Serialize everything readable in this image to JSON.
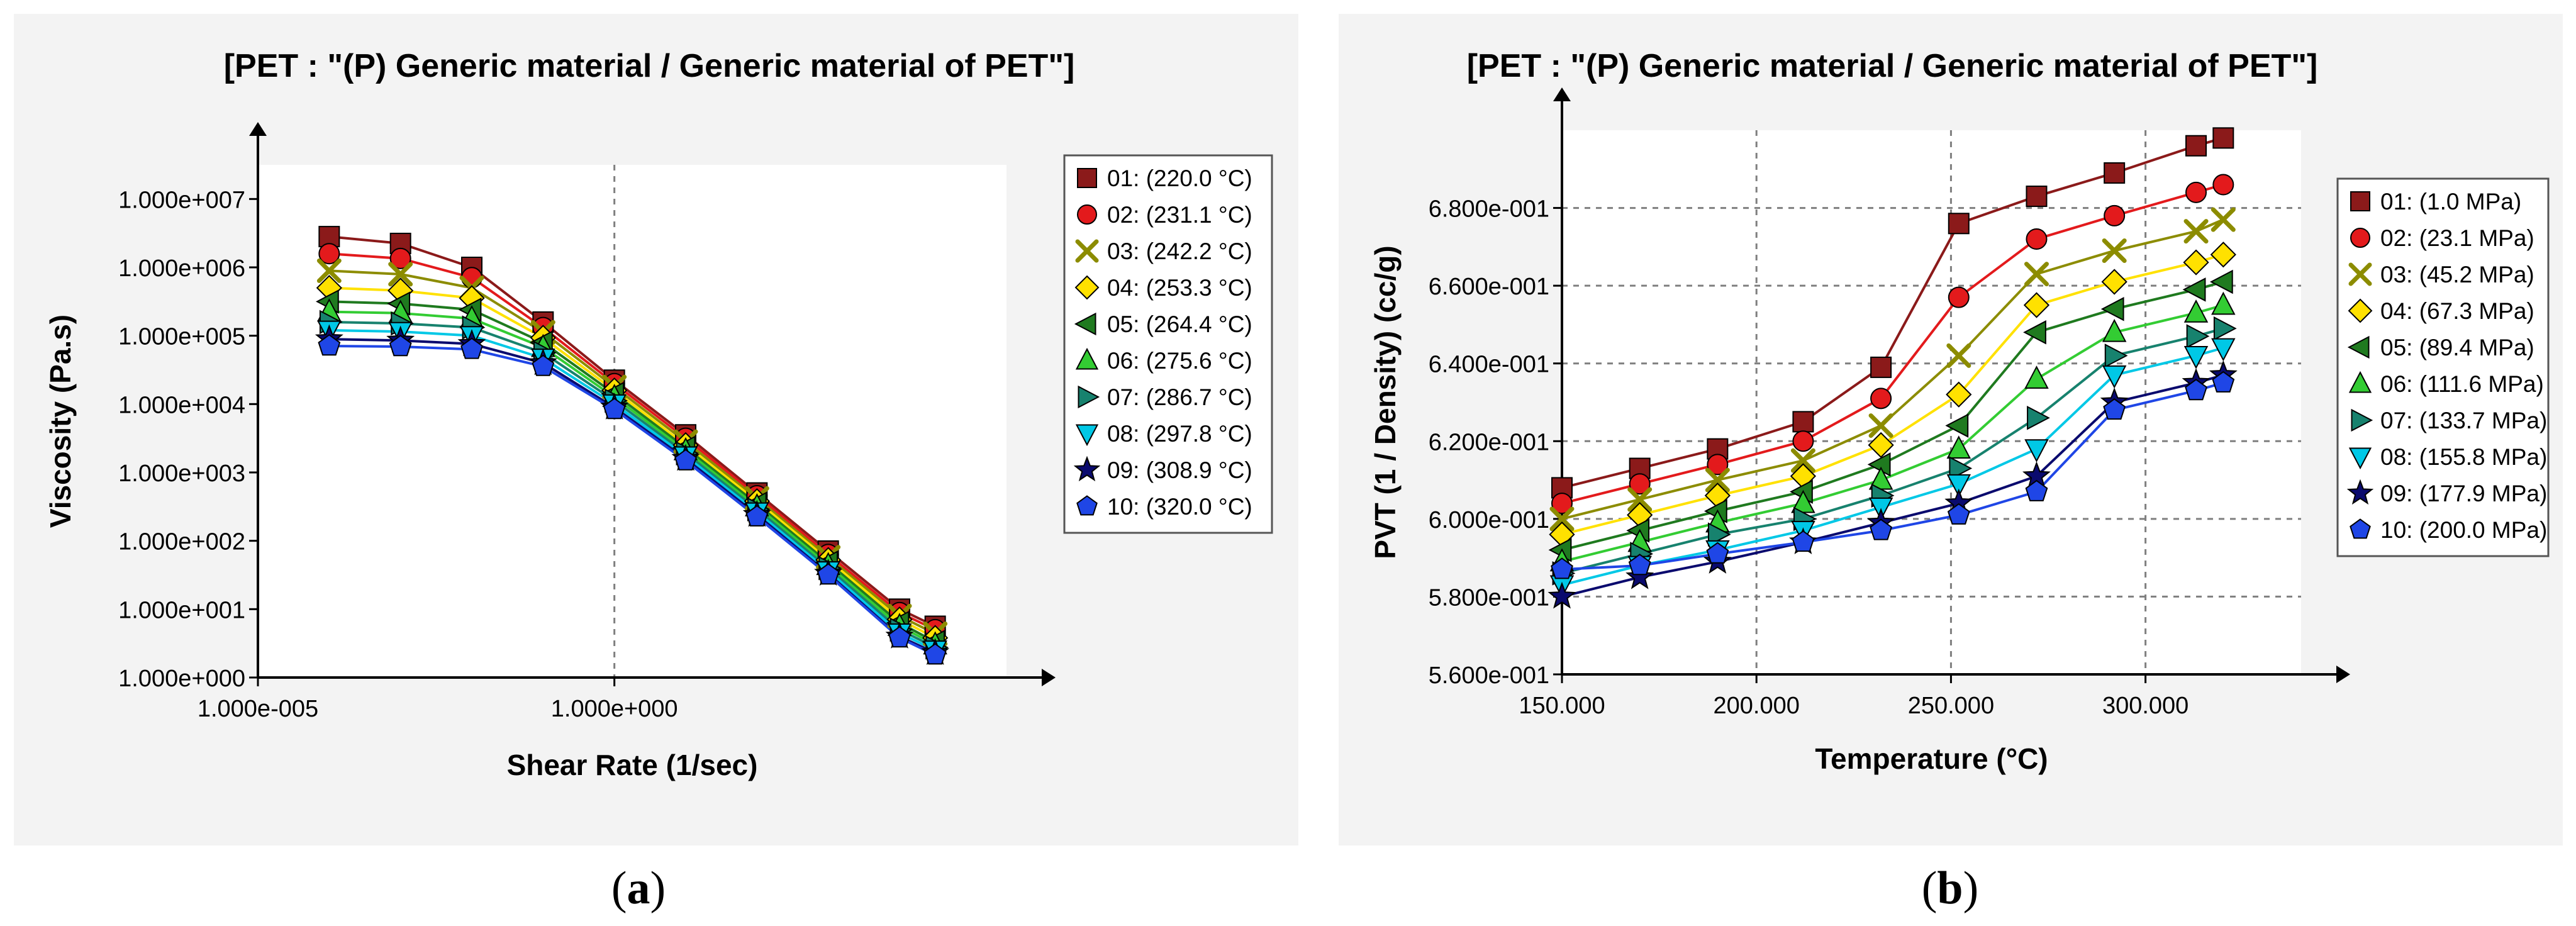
{
  "captions": {
    "a": "a",
    "b": "b"
  },
  "chart_data": [
    {
      "type": "line",
      "panel": "a",
      "title": "[PET : \"(P)  Generic material / Generic material of PET\"]",
      "xlabel": "Shear Rate (1/sec)",
      "ylabel": "Viscosity (Pa.s)",
      "xscale": "log10",
      "yscale": "log10",
      "xlim": [
        -5,
        5.5
      ],
      "ylim": [
        0,
        7.5
      ],
      "x_ticks": [
        {
          "v": -5,
          "label": "1.000e-005"
        },
        {
          "v": 0,
          "label": "1.000e+000"
        }
      ],
      "y_ticks": [
        {
          "v": 0,
          "label": "1.000e+000"
        },
        {
          "v": 1,
          "label": "1.000e+001"
        },
        {
          "v": 2,
          "label": "1.000e+002"
        },
        {
          "v": 3,
          "label": "1.000e+003"
        },
        {
          "v": 4,
          "label": "1.000e+004"
        },
        {
          "v": 5,
          "label": "1.000e+005"
        },
        {
          "v": 6,
          "label": "1.000e+006"
        },
        {
          "v": 7,
          "label": "1.000e+007"
        }
      ],
      "gridlines": "vertical",
      "x": [
        -4,
        -3,
        -2,
        -1,
        0,
        1,
        2,
        3,
        4,
        4.5
      ],
      "series": [
        {
          "name": "01: (220.0 °C)",
          "color": "#8b1a1a",
          "marker": "square",
          "values": [
            6.45,
            6.35,
            6.0,
            5.2,
            4.35,
            3.55,
            2.7,
            1.85,
            1.0,
            0.75
          ]
        },
        {
          "name": "02: (231.1 °C)",
          "color": "#e31a1c",
          "marker": "circle",
          "values": [
            6.2,
            6.13,
            5.85,
            5.12,
            4.3,
            3.5,
            2.66,
            1.8,
            0.95,
            0.7
          ]
        },
        {
          "name": "03: (242.2 °C)",
          "color": "#8c8c00",
          "marker": "x",
          "values": [
            5.95,
            5.9,
            5.7,
            5.05,
            4.25,
            3.45,
            2.62,
            1.76,
            0.9,
            0.64
          ]
        },
        {
          "name": "04: (253.3 °C)",
          "color": "#ffe100",
          "marker": "diamond",
          "values": [
            5.7,
            5.66,
            5.55,
            4.97,
            4.2,
            3.4,
            2.58,
            1.72,
            0.85,
            0.58
          ]
        },
        {
          "name": "05: (264.4 °C)",
          "color": "#1f7a1f",
          "marker": "triLeft",
          "values": [
            5.5,
            5.47,
            5.38,
            4.9,
            4.15,
            3.36,
            2.54,
            1.68,
            0.8,
            0.52
          ]
        },
        {
          "name": "06: (275.6 °C)",
          "color": "#33cc33",
          "marker": "triUp",
          "values": [
            5.35,
            5.33,
            5.25,
            4.83,
            4.1,
            3.32,
            2.5,
            1.64,
            0.75,
            0.48
          ]
        },
        {
          "name": "07: (286.7 °C)",
          "color": "#17826e",
          "marker": "triRight",
          "values": [
            5.2,
            5.18,
            5.12,
            4.75,
            4.05,
            3.28,
            2.46,
            1.6,
            0.7,
            0.44
          ]
        },
        {
          "name": "08: (297.8 °C)",
          "color": "#00c8e6",
          "marker": "triDown",
          "values": [
            5.08,
            5.06,
            5.0,
            4.67,
            4.0,
            3.24,
            2.42,
            1.56,
            0.65,
            0.4
          ]
        },
        {
          "name": "09: (308.9 °C)",
          "color": "#0a0a6e",
          "marker": "star",
          "values": [
            4.95,
            4.93,
            4.88,
            4.6,
            3.95,
            3.2,
            2.38,
            1.52,
            0.6,
            0.36
          ]
        },
        {
          "name": "10: (320.0 °C)",
          "color": "#1f46e6",
          "marker": "pentagon",
          "values": [
            4.85,
            4.84,
            4.8,
            4.55,
            3.92,
            3.17,
            2.35,
            1.5,
            0.58,
            0.33
          ]
        }
      ]
    },
    {
      "type": "line",
      "panel": "b",
      "title": "[PET : \"(P)  Generic material / Generic material of PET\"]",
      "xlabel": "Temperature (°C)",
      "ylabel": "PVT (1 / Density) (cc/g)",
      "xlim": [
        150,
        340
      ],
      "ylim": [
        0.56,
        0.7
      ],
      "x_ticks": [
        {
          "v": 150,
          "label": "150.000"
        },
        {
          "v": 200,
          "label": "200.000"
        },
        {
          "v": 250,
          "label": "250.000"
        },
        {
          "v": 300,
          "label": "300.000"
        }
      ],
      "y_ticks": [
        {
          "v": 0.56,
          "label": "5.600e-001"
        },
        {
          "v": 0.58,
          "label": "5.800e-001"
        },
        {
          "v": 0.6,
          "label": "6.000e-001"
        },
        {
          "v": 0.62,
          "label": "6.200e-001"
        },
        {
          "v": 0.64,
          "label": "6.400e-001"
        },
        {
          "v": 0.66,
          "label": "6.600e-001"
        },
        {
          "v": 0.68,
          "label": "6.800e-001"
        }
      ],
      "gridlines": "both",
      "x": [
        150,
        170,
        190,
        212,
        232,
        252,
        272,
        292,
        313,
        320
      ],
      "series": [
        {
          "name": "01: (1.0 MPa)",
          "color": "#8b1a1a",
          "marker": "square",
          "values": [
            0.608,
            0.613,
            0.618,
            0.625,
            0.639,
            0.676,
            0.683,
            0.689,
            0.696,
            0.698
          ]
        },
        {
          "name": "02: (23.1 MPa)",
          "color": "#e31a1c",
          "marker": "circle",
          "values": [
            0.604,
            0.609,
            0.614,
            0.62,
            0.631,
            0.657,
            0.672,
            0.678,
            0.684,
            0.686
          ]
        },
        {
          "name": "03: (45.2 MPa)",
          "color": "#8c8c00",
          "marker": "x",
          "values": [
            0.6,
            0.605,
            0.61,
            0.615,
            0.624,
            0.642,
            0.663,
            0.669,
            0.674,
            0.677
          ]
        },
        {
          "name": "04: (67.3 MPa)",
          "color": "#ffe100",
          "marker": "diamond",
          "values": [
            0.596,
            0.601,
            0.606,
            0.611,
            0.619,
            0.632,
            0.655,
            0.661,
            0.666,
            0.668
          ]
        },
        {
          "name": "05: (89.4 MPa)",
          "color": "#1f7a1f",
          "marker": "triLeft",
          "values": [
            0.592,
            0.597,
            0.602,
            0.607,
            0.614,
            0.624,
            0.648,
            0.654,
            0.659,
            0.661
          ]
        },
        {
          "name": "06: (111.6 MPa)",
          "color": "#33cc33",
          "marker": "triUp",
          "values": [
            0.589,
            0.594,
            0.599,
            0.604,
            0.61,
            0.618,
            0.636,
            0.648,
            0.653,
            0.655
          ]
        },
        {
          "name": "07: (133.7 MPa)",
          "color": "#17826e",
          "marker": "triRight",
          "values": [
            0.586,
            0.591,
            0.596,
            0.6,
            0.606,
            0.613,
            0.626,
            0.642,
            0.647,
            0.649
          ]
        },
        {
          "name": "08: (155.8 MPa)",
          "color": "#00c8e6",
          "marker": "triDown",
          "values": [
            0.583,
            0.588,
            0.592,
            0.597,
            0.603,
            0.609,
            0.618,
            0.637,
            0.642,
            0.644
          ]
        },
        {
          "name": "09: (177.9 MPa)",
          "color": "#0a0a6e",
          "marker": "star",
          "values": [
            0.58,
            0.585,
            0.589,
            0.594,
            0.599,
            0.604,
            0.611,
            0.63,
            0.635,
            0.637
          ]
        },
        {
          "name": "10: (200.0 MPa)",
          "color": "#1f46e6",
          "marker": "pentagon",
          "values": [
            0.587,
            0.588,
            0.591,
            0.594,
            0.597,
            0.601,
            0.607,
            0.628,
            0.633,
            0.635
          ]
        }
      ]
    }
  ]
}
